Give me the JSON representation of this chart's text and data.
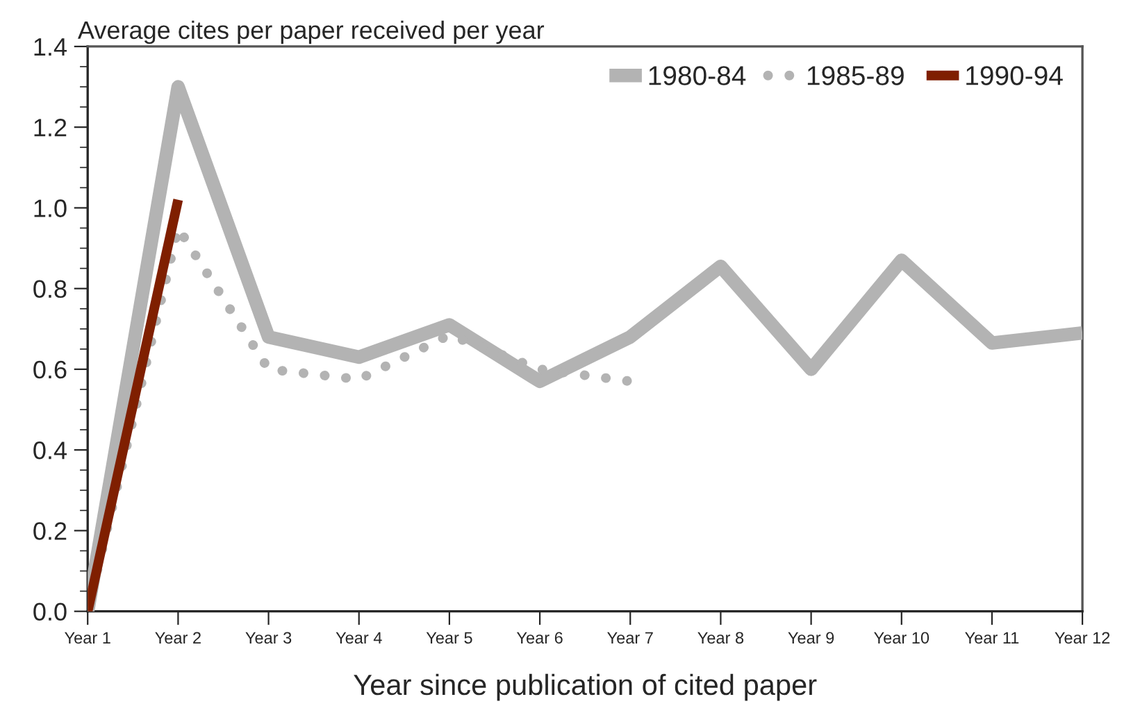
{
  "chart_data": {
    "type": "line",
    "title": "Average cites per paper received per year",
    "xlabel": "Year since publication of cited paper",
    "categories": [
      "Year 1",
      "Year 2",
      "Year 3",
      "Year 4",
      "Year 5",
      "Year 6",
      "Year 7",
      "Year 8",
      "Year 9",
      "Year 10",
      "Year 11",
      "Year 12"
    ],
    "series": [
      {
        "name": "1980-84",
        "color": "#b3b3b3",
        "line_style": "solid",
        "values": [
          0,
          1.3,
          0.68,
          0.63,
          0.71,
          0.57,
          0.68,
          0.855,
          0.6,
          0.87,
          0.665,
          0.69
        ]
      },
      {
        "name": "1985-89",
        "color": "#b3b3b3",
        "line_style": "dotted",
        "values": [
          0,
          0.95,
          0.6,
          0.575,
          0.685,
          0.6,
          0.57,
          null,
          null,
          null,
          null,
          null
        ]
      },
      {
        "name": "1990-94",
        "color": "#7f1f00",
        "line_style": "solid",
        "values": [
          0,
          1.02,
          null,
          null,
          null,
          null,
          null,
          null,
          null,
          null,
          null,
          null
        ]
      }
    ],
    "ylim": [
      0,
      1.4
    ],
    "yticks": [
      {
        "value": 0,
        "label": "0.0"
      },
      {
        "value": 0.2,
        "label": "0.2"
      },
      {
        "value": 0.4,
        "label": "0.4"
      },
      {
        "value": 0.6,
        "label": "0.6"
      },
      {
        "value": 0.8,
        "label": "0.8"
      },
      {
        "value": 1.0,
        "label": "1.0"
      },
      {
        "value": 1.2,
        "label": "1.2"
      },
      {
        "value": 1.4,
        "label": "1.4"
      }
    ],
    "legend": "top right",
    "grid": false
  }
}
